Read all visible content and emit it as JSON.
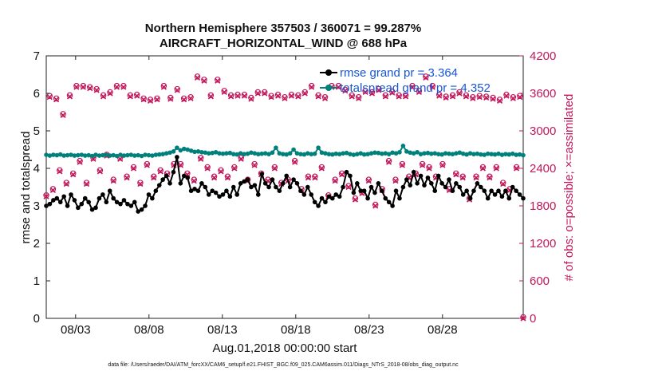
{
  "chart_data": {
    "type": "line",
    "title_line1": "Northern Hemisphere 357503 / 360071 = 99.287%",
    "title_line2": "AIRCRAFT_HORIZONTAL_WIND @ 688 hPa",
    "xlabel": "Aug.01,2018 00:00:00 start",
    "ylabel": "rmse and totalspread",
    "ylabel_right": "# of obs: o=possible; ×=assimilated",
    "footnote": "data file: /Users/raeder/DAI/ATM_forcXX/CAM6_setup/f.e21.FHIST_BGC.f09_025.CAM6assim.011/Diags_NTrS_2018-08/obs_diag_output.nc",
    "xlim_days": [
      0,
      32.5
    ],
    "ylim": [
      0,
      7
    ],
    "ylim_right": [
      0,
      4200
    ],
    "x_ticks": [
      {
        "day": 2,
        "label": "08/03"
      },
      {
        "day": 7,
        "label": "08/08"
      },
      {
        "day": 12,
        "label": "08/13"
      },
      {
        "day": 17,
        "label": "08/18"
      },
      {
        "day": 22,
        "label": "08/23"
      },
      {
        "day": 27,
        "label": "08/28"
      }
    ],
    "y_ticks": [
      "0",
      "1",
      "2",
      "3",
      "4",
      "5",
      "6",
      "7"
    ],
    "y_right_ticks": [
      "0",
      "600",
      "1200",
      "1800",
      "2400",
      "3000",
      "3600",
      "4200"
    ],
    "legend": [
      {
        "name": "rmse",
        "label": "rmse grand pr = 3.364",
        "color": "#000000"
      },
      {
        "name": "totalspread",
        "label": "totalspread grand pr = 4.352",
        "color": "#00807a"
      }
    ],
    "series": [
      {
        "name": "rmse",
        "color": "#000000",
        "values": [
          3.0,
          3.05,
          3.15,
          3.2,
          3.1,
          3.25,
          3.0,
          3.3,
          3.15,
          2.95,
          3.05,
          3.2,
          3.1,
          2.9,
          2.95,
          3.2,
          3.3,
          3.1,
          3.4,
          3.2,
          3.1,
          3.05,
          3.15,
          3.05,
          3.0,
          3.1,
          2.85,
          2.9,
          3.0,
          3.3,
          3.2,
          3.4,
          3.55,
          3.7,
          3.8,
          3.6,
          3.9,
          4.3,
          3.6,
          3.8,
          3.75,
          3.4,
          3.45,
          3.4,
          3.6,
          3.5,
          3.3,
          3.4,
          3.35,
          3.25,
          3.3,
          3.4,
          3.25,
          3.5,
          3.3,
          3.6,
          3.65,
          3.7,
          3.5,
          3.55,
          3.3,
          3.85,
          3.6,
          3.5,
          3.7,
          3.5,
          3.4,
          3.6,
          3.8,
          3.5,
          3.7,
          3.6,
          3.4,
          3.3,
          3.5,
          3.3,
          3.1,
          3.0,
          3.2,
          3.1,
          3.25,
          3.2,
          3.3,
          3.25,
          3.5,
          3.9,
          3.8,
          3.35,
          3.6,
          3.4,
          3.4,
          3.2,
          3.5,
          3.35,
          3.6,
          3.4,
          3.2,
          3.1,
          3.0,
          3.4,
          3.2,
          3.5,
          3.7,
          3.55,
          3.9,
          3.6,
          3.8,
          3.55,
          3.75,
          3.6,
          3.4,
          3.8,
          3.6,
          3.5,
          3.7,
          3.4,
          3.6,
          3.5,
          3.3,
          3.4,
          3.2,
          3.4,
          3.6,
          3.5,
          3.4,
          3.2,
          3.4,
          3.3,
          3.4,
          3.25,
          3.4,
          3.2,
          3.5,
          3.4,
          3.3,
          3.2
        ],
        "marker": "filled-circle"
      },
      {
        "name": "totalspread",
        "color": "#00807a",
        "values": [
          4.36,
          4.34,
          4.36,
          4.35,
          4.37,
          4.34,
          4.35,
          4.36,
          4.34,
          4.35,
          4.36,
          4.34,
          4.35,
          4.33,
          4.36,
          4.34,
          4.35,
          4.36,
          4.34,
          4.35,
          4.33,
          4.36,
          4.34,
          4.35,
          4.36,
          4.34,
          4.35,
          4.33,
          4.36,
          4.35,
          4.34,
          4.36,
          4.37,
          4.38,
          4.4,
          4.42,
          4.45,
          4.55,
          4.48,
          4.52,
          4.5,
          4.47,
          4.44,
          4.45,
          4.43,
          4.42,
          4.4,
          4.41,
          4.43,
          4.4,
          4.39,
          4.4,
          4.41,
          4.38,
          4.37,
          4.4,
          4.38,
          4.39,
          4.42,
          4.4,
          4.38,
          4.39,
          4.4,
          4.38,
          4.42,
          4.55,
          4.4,
          4.38,
          4.37,
          4.4,
          4.5,
          4.4,
          4.38,
          4.37,
          4.4,
          4.38,
          4.39,
          4.55,
          4.42,
          4.4,
          4.38,
          4.37,
          4.39,
          4.38,
          4.4,
          4.41,
          4.38,
          4.36,
          4.38,
          4.4,
          4.37,
          4.38,
          4.4,
          4.42,
          4.41,
          4.39,
          4.4,
          4.38,
          4.42,
          4.4,
          4.43,
          4.6,
          4.45,
          4.42,
          4.4,
          4.43,
          4.38,
          4.4,
          4.41,
          4.39,
          4.4,
          4.38,
          4.37,
          4.4,
          4.39,
          4.38,
          4.4,
          4.42,
          4.39,
          4.37,
          4.4,
          4.38,
          4.39,
          4.37,
          4.36,
          4.39,
          4.38,
          4.37,
          4.39,
          4.36,
          4.38,
          4.37,
          4.39,
          4.36,
          4.37,
          4.35
        ],
        "marker": "filled-circle"
      },
      {
        "name": "obs_possible",
        "axis": "right",
        "color": "#c2185b",
        "marker": "circle",
        "values": [
          1950,
          3540,
          2050,
          3500,
          2350,
          3250,
          2150,
          3550,
          2300,
          3700,
          2500,
          3700,
          2150,
          3680,
          2550,
          3650,
          2350,
          3550,
          2600,
          3600,
          2200,
          3700,
          2550,
          3700,
          2250,
          3550,
          2400,
          3560,
          2150,
          3500,
          2450,
          3480,
          2250,
          3500,
          2350,
          3700,
          2300,
          3510,
          2450,
          3650,
          2450,
          3500,
          2300,
          3520,
          2200,
          3850,
          2550,
          3800,
          2400,
          3550,
          2250,
          3800,
          2350,
          3620,
          2250,
          3550,
          2400,
          3560,
          2550,
          3560,
          2200,
          3510,
          2450,
          3600,
          2300,
          3600,
          2200,
          3540,
          2400,
          3560,
          2150,
          3520,
          2200,
          3560,
          2500,
          3550,
          2050,
          3600,
          2250,
          3700,
          2250,
          3550,
          2400,
          3520,
          1950,
          3700,
          2200,
          3700,
          2300,
          3640,
          2100,
          3550,
          1900,
          3520,
          2000,
          3620,
          2200,
          3600,
          1800,
          3650,
          2050,
          3550,
          2500,
          3610,
          2200,
          3550,
          2450,
          3550,
          2250,
          3700,
          2300,
          3620,
          2450,
          3850,
          2400,
          3700,
          2250,
          3560,
          2450,
          3530,
          2050,
          3550,
          2300,
          3600,
          2250,
          3550,
          1900,
          3520,
          2250,
          3540,
          2400,
          3530,
          2250,
          3510,
          2400,
          3480,
          2150,
          3560,
          2050,
          3520,
          2400,
          3540,
          0
        ],
        "note": "interleaved low/high samples; last = 0"
      },
      {
        "name": "obs_assimilated",
        "axis": "right",
        "color": "#c2185b",
        "marker": "cross"
      }
    ]
  }
}
